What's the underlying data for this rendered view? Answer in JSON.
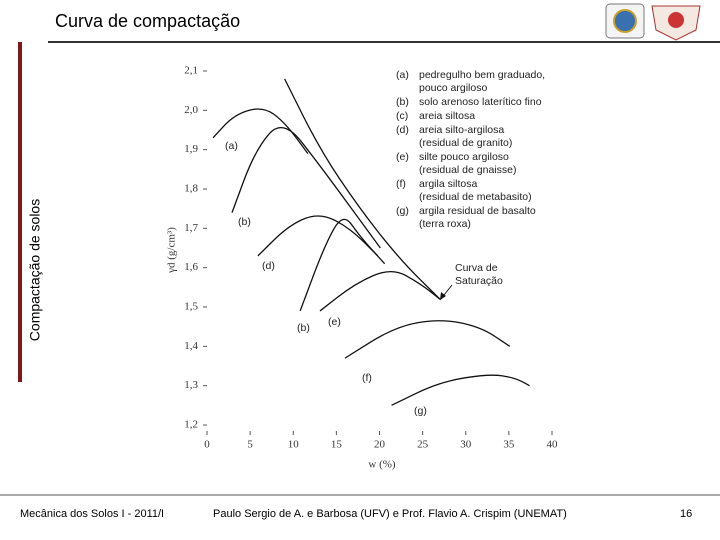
{
  "header": {
    "title": "Curva de compactação",
    "side_label": "Compactação de solos"
  },
  "footer": {
    "course": "Mecânica dos Solos I - 2011/I",
    "authors": "Paulo Sergio de A. e Barbosa (UFV) e Prof. Flavio  A. Crispim (UNEMAT)",
    "page": "16"
  },
  "chart_data": {
    "type": "line",
    "x_label": "w (%)",
    "y_label": "γd (g/cm³)",
    "xlim": [
      0,
      40
    ],
    "xticks": [
      0,
      5,
      10,
      15,
      20,
      25,
      30,
      35,
      40
    ],
    "ylim": [
      1.2,
      2.1
    ],
    "yticks": [
      {
        "value": 1.2,
        "label": "1,2"
      },
      {
        "value": 1.3,
        "label": "1,3"
      },
      {
        "value": 1.4,
        "label": "1,4"
      },
      {
        "value": 1.5,
        "label": "1,5"
      },
      {
        "value": 1.6,
        "label": "1,6"
      },
      {
        "value": 1.7,
        "label": "1,7"
      },
      {
        "value": 1.8,
        "label": "1,8"
      },
      {
        "value": 1.9,
        "label": "1,9"
      },
      {
        "value": 2.0,
        "label": "2,0"
      },
      {
        "value": 2.1,
        "label": "2,1"
      }
    ],
    "color": "#111",
    "series": [
      {
        "name": "(a)",
        "x": [
          0.7,
          3.2,
          6.5,
          9.0,
          11.7
        ],
        "values": [
          1.93,
          1.99,
          2.01,
          1.97,
          1.89
        ]
      },
      {
        "name": "(b)",
        "x": [
          2.9,
          5.6,
          8.8,
          13.1,
          20.1
        ],
        "values": [
          1.74,
          1.9,
          1.98,
          1.86,
          1.65
        ]
      },
      {
        "name": "(d)",
        "x": [
          5.9,
          9.6,
          13.1,
          16.6,
          19.8
        ],
        "values": [
          1.63,
          1.71,
          1.74,
          1.7,
          1.63
        ]
      },
      {
        "name": "(b)",
        "x": [
          10.8,
          13.7,
          15.8,
          17.7,
          20.6
        ],
        "values": [
          1.49,
          1.66,
          1.74,
          1.68,
          1.61
        ]
      },
      {
        "name": "(e)",
        "x": [
          13.1,
          17.2,
          21.4,
          24.7,
          27.0
        ],
        "values": [
          1.49,
          1.56,
          1.6,
          1.56,
          1.52
        ]
      },
      {
        "name": "(f)",
        "x": [
          16.0,
          21.8,
          27.0,
          31.7,
          35.1
        ],
        "values": [
          1.37,
          1.45,
          1.47,
          1.45,
          1.4
        ]
      },
      {
        "name": "(g)",
        "x": [
          21.4,
          27.0,
          32.8,
          35.7,
          37.4
        ],
        "values": [
          1.25,
          1.31,
          1.33,
          1.32,
          1.3
        ]
      },
      {
        "x": [
          9.0,
          13.1,
          17.7,
          22.4,
          27.0
        ],
        "values": [
          2.08,
          1.9,
          1.75,
          1.62,
          1.52
        ]
      }
    ],
    "annotation": [
      "Curva de",
      "Saturação"
    ],
    "notes": [
      {
        "key": "(a)",
        "lines": [
          "pedregulho bem graduado,",
          "pouco argiloso"
        ]
      },
      {
        "key": "(b)",
        "lines": [
          "solo arenoso laterítico fino"
        ]
      },
      {
        "key": "(c)",
        "lines": [
          "areia siltosa"
        ]
      },
      {
        "key": "(d)",
        "lines": [
          "areia silto-argilosa",
          "(residual de granito)"
        ]
      },
      {
        "key": "(e)",
        "lines": [
          "silte pouco argiloso",
          "(residual de gnaisse)"
        ]
      },
      {
        "key": "(f)",
        "lines": [
          "argila siltosa",
          "(residual de metabasito)"
        ]
      },
      {
        "key": "(g)",
        "lines": [
          "argila residual de basalto",
          "(terra roxa)"
        ]
      }
    ]
  }
}
